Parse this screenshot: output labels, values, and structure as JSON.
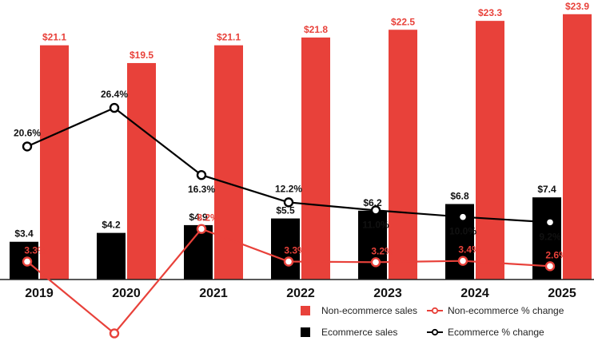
{
  "chart_data": {
    "type": "bar",
    "categories": [
      "2019",
      "2020",
      "2021",
      "2022",
      "2023",
      "2024",
      "2025"
    ],
    "series": [
      {
        "name": "Ecommerce sales",
        "kind": "bar",
        "color": "#000000",
        "values": [
          3.4,
          4.2,
          4.9,
          5.5,
          6.2,
          6.8,
          7.4
        ],
        "labels": [
          "$3.4",
          "$4.2",
          "$4.9",
          "$5.5",
          "$6.2",
          "$6.8",
          "$7.4"
        ]
      },
      {
        "name": "Non-ecommerce sales",
        "kind": "bar",
        "color": "#e8413a",
        "values": [
          21.1,
          19.5,
          21.1,
          21.8,
          22.5,
          23.3,
          23.9
        ],
        "labels": [
          "$21.1",
          "$19.5",
          "$21.1",
          "$21.8",
          "$22.5",
          "$23.3",
          "$23.9"
        ]
      },
      {
        "name": "Ecommerce % change",
        "kind": "line",
        "color": "#000000",
        "values": [
          20.6,
          26.4,
          16.3,
          12.2,
          11.0,
          10.0,
          9.2
        ],
        "labels": [
          "20.6%",
          "26.4%",
          "16.3%",
          "12.2%",
          "11.0%",
          "10.0%",
          "9.2%"
        ]
      },
      {
        "name": "Non-ecommerce % change",
        "kind": "line",
        "color": "#e8413a",
        "values": [
          3.3,
          -7.5,
          8.2,
          3.3,
          3.2,
          3.4,
          2.6
        ],
        "labels": [
          "3.3%",
          "",
          "8.2%",
          "3.3%",
          "3.2%",
          "3.4%",
          "2.6%"
        ]
      }
    ],
    "legend": {
      "position": "bottom-right",
      "items": [
        "Non-ecommerce sales",
        "Non-ecommerce % change",
        "Ecommerce sales",
        "Ecommerce % change"
      ]
    },
    "title": "",
    "xlabel": "",
    "ylabel": ""
  }
}
